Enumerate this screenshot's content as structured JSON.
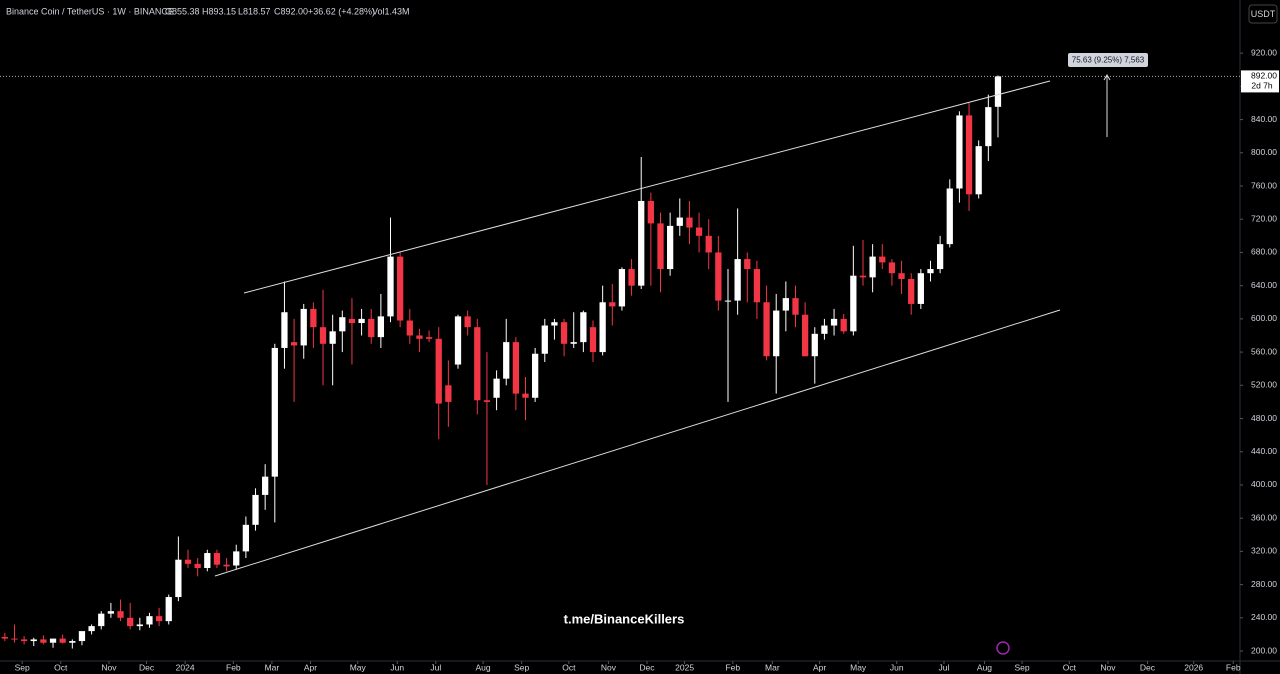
{
  "header": {
    "symbol": "Binance Coin / TetherUS · 1W · BINANCE",
    "open": "O855.38",
    "high": "H893.15",
    "low": "L818.57",
    "close": "C892.00",
    "change": "+36.62 (+4.28%)",
    "volume": "Vol1.43M",
    "currency": "USDT"
  },
  "watermark": "t.me/BinanceKillers",
  "price_label": {
    "value": "892.00",
    "countdown": "2d 7h"
  },
  "measure_label": "75.63 (9.25%) 7,563",
  "chart_data": {
    "type": "candlestick",
    "up_color": "#ffffff",
    "down_color": "#f23645",
    "xlim": [
      -0.5,
      128.1
    ],
    "ylim": [
      188,
      984
    ],
    "xticks": [
      {
        "value": 1.8,
        "label": "Sep"
      },
      {
        "value": 5.8,
        "label": "Oct"
      },
      {
        "value": 10.8,
        "label": "Nov"
      },
      {
        "value": 14.7,
        "label": "Dec"
      },
      {
        "value": 18.7,
        "label": "2024"
      },
      {
        "value": 23.7,
        "label": "Feb"
      },
      {
        "value": 27.7,
        "label": "Mar"
      },
      {
        "value": 31.7,
        "label": "Apr"
      },
      {
        "value": 36.6,
        "label": "May"
      },
      {
        "value": 40.7,
        "label": "Jun"
      },
      {
        "value": 44.7,
        "label": "Jul"
      },
      {
        "value": 49.6,
        "label": "Aug"
      },
      {
        "value": 53.6,
        "label": "Sep"
      },
      {
        "value": 58.5,
        "label": "Oct"
      },
      {
        "value": 62.6,
        "label": "Nov"
      },
      {
        "value": 66.6,
        "label": "Dec"
      },
      {
        "value": 70.5,
        "label": "2025"
      },
      {
        "value": 75.5,
        "label": "Feb"
      },
      {
        "value": 79.6,
        "label": "Mar"
      },
      {
        "value": 84.5,
        "label": "Apr"
      },
      {
        "value": 88.5,
        "label": "May"
      },
      {
        "value": 92.5,
        "label": "Jun"
      },
      {
        "value": 97.4,
        "label": "Jul"
      },
      {
        "value": 101.6,
        "label": "Aug"
      },
      {
        "value": 105.5,
        "label": "Sep"
      },
      {
        "value": 110.4,
        "label": "Oct"
      },
      {
        "value": 114.4,
        "label": "Nov"
      },
      {
        "value": 118.5,
        "label": "Dec"
      },
      {
        "value": 123.3,
        "label": "2026"
      },
      {
        "value": 127.4,
        "label": "Feb"
      }
    ],
    "yticks": [
      {
        "value": 200,
        "label": "200.00"
      },
      {
        "value": 240,
        "label": "240.00"
      },
      {
        "value": 280,
        "label": "280.00"
      },
      {
        "value": 320,
        "label": "320.00"
      },
      {
        "value": 360,
        "label": "360.00"
      },
      {
        "value": 400,
        "label": "400.00"
      },
      {
        "value": 440,
        "label": "440.00"
      },
      {
        "value": 480,
        "label": "480.00"
      },
      {
        "value": 520,
        "label": "520.00"
      },
      {
        "value": 560,
        "label": "560.00"
      },
      {
        "value": 600,
        "label": "600.00"
      },
      {
        "value": 640,
        "label": "640.00"
      },
      {
        "value": 680,
        "label": "680.00"
      },
      {
        "value": 720,
        "label": "720.00"
      },
      {
        "value": 760,
        "label": "760.00"
      },
      {
        "value": 800,
        "label": "800.00"
      },
      {
        "value": 840,
        "label": "840.00"
      },
      {
        "value": 880,
        "label": "880.00"
      },
      {
        "value": 920,
        "label": "920.00"
      }
    ],
    "candles": [
      [
        217,
        222,
        212,
        215
      ],
      [
        215,
        232,
        210,
        214
      ],
      [
        214,
        218,
        208,
        212
      ],
      [
        212,
        216,
        206,
        214
      ],
      [
        214,
        219,
        208,
        210
      ],
      [
        210,
        214,
        204,
        215
      ],
      [
        215,
        220,
        209,
        210
      ],
      [
        210,
        214,
        203,
        212
      ],
      [
        212,
        218,
        207,
        224
      ],
      [
        224,
        232,
        220,
        230
      ],
      [
        230,
        248,
        226,
        245
      ],
      [
        245,
        258,
        240,
        248
      ],
      [
        248,
        262,
        236,
        240
      ],
      [
        240,
        258,
        226,
        230
      ],
      [
        230,
        240,
        225,
        232
      ],
      [
        232,
        246,
        228,
        242
      ],
      [
        242,
        252,
        230,
        236
      ],
      [
        236,
        268,
        232,
        265
      ],
      [
        265,
        338,
        260,
        310
      ],
      [
        310,
        322,
        300,
        305
      ],
      [
        305,
        312,
        290,
        300
      ],
      [
        300,
        322,
        296,
        318
      ],
      [
        318,
        322,
        300,
        304
      ],
      [
        304,
        312,
        296,
        302
      ],
      [
        303,
        328,
        298,
        320
      ],
      [
        320,
        362,
        312,
        352
      ],
      [
        352,
        396,
        345,
        388
      ],
      [
        388,
        425,
        370,
        410
      ],
      [
        410,
        570,
        355,
        565
      ],
      [
        565,
        645,
        540,
        608
      ],
      [
        572,
        600,
        500,
        568
      ],
      [
        568,
        618,
        552,
        612
      ],
      [
        612,
        620,
        565,
        590
      ],
      [
        590,
        635,
        520,
        570
      ],
      [
        570,
        605,
        520,
        585
      ],
      [
        585,
        610,
        560,
        602
      ],
      [
        600,
        625,
        545,
        595
      ],
      [
        595,
        612,
        580,
        600
      ],
      [
        600,
        612,
        570,
        578
      ],
      [
        578,
        630,
        565,
        603
      ],
      [
        603,
        722,
        596,
        675
      ],
      [
        675,
        680,
        590,
        598
      ],
      [
        598,
        612,
        570,
        580
      ],
      [
        580,
        588,
        560,
        576
      ],
      [
        578,
        586,
        572,
        576
      ],
      [
        576,
        590,
        455,
        498
      ],
      [
        520,
        550,
        470,
        500
      ],
      [
        545,
        605,
        540,
        603
      ],
      [
        603,
        610,
        580,
        590
      ],
      [
        590,
        600,
        485,
        502
      ],
      [
        502,
        560,
        400,
        500
      ],
      [
        505,
        538,
        490,
        528
      ],
      [
        528,
        600,
        520,
        572
      ],
      [
        572,
        578,
        490,
        510
      ],
      [
        510,
        530,
        478,
        505
      ],
      [
        505,
        565,
        500,
        558
      ],
      [
        558,
        600,
        548,
        592
      ],
      [
        592,
        600,
        575,
        596
      ],
      [
        596,
        600,
        555,
        570
      ],
      [
        570,
        608,
        565,
        572
      ],
      [
        572,
        610,
        560,
        608
      ],
      [
        590,
        598,
        548,
        560
      ],
      [
        560,
        640,
        556,
        620
      ],
      [
        620,
        642,
        592,
        615
      ],
      [
        615,
        662,
        610,
        660
      ],
      [
        660,
        672,
        628,
        640
      ],
      [
        640,
        795,
        636,
        742
      ],
      [
        742,
        752,
        640,
        715
      ],
      [
        715,
        728,
        632,
        660
      ],
      [
        660,
        728,
        652,
        712
      ],
      [
        712,
        745,
        700,
        722
      ],
      [
        722,
        742,
        690,
        710
      ],
      [
        710,
        728,
        680,
        700
      ],
      [
        700,
        720,
        660,
        680
      ],
      [
        680,
        700,
        610,
        622
      ],
      [
        622,
        660,
        500,
        622
      ],
      [
        622,
        733,
        605,
        672
      ],
      [
        672,
        680,
        620,
        660
      ],
      [
        660,
        670,
        600,
        620
      ],
      [
        620,
        640,
        550,
        555
      ],
      [
        555,
        630,
        510,
        610
      ],
      [
        610,
        645,
        585,
        625
      ],
      [
        625,
        640,
        590,
        605
      ],
      [
        605,
        620,
        555,
        555
      ],
      [
        555,
        590,
        522,
        582
      ],
      [
        582,
        600,
        575,
        592
      ],
      [
        592,
        612,
        580,
        600
      ],
      [
        600,
        606,
        582,
        585
      ],
      [
        585,
        688,
        580,
        652
      ],
      [
        652,
        695,
        640,
        650
      ],
      [
        650,
        690,
        632,
        675
      ],
      [
        675,
        690,
        660,
        668
      ],
      [
        668,
        672,
        640,
        655
      ],
      [
        655,
        670,
        630,
        648
      ],
      [
        648,
        655,
        605,
        618
      ],
      [
        618,
        660,
        612,
        655
      ],
      [
        655,
        670,
        645,
        660
      ],
      [
        660,
        700,
        655,
        690
      ],
      [
        690,
        768,
        686,
        757
      ],
      [
        757,
        850,
        740,
        845
      ],
      [
        845,
        860,
        730,
        750
      ],
      [
        750,
        815,
        745,
        808
      ],
      [
        808,
        870,
        790,
        855
      ],
      [
        855.38,
        893.15,
        818.57,
        892.0
      ]
    ]
  }
}
